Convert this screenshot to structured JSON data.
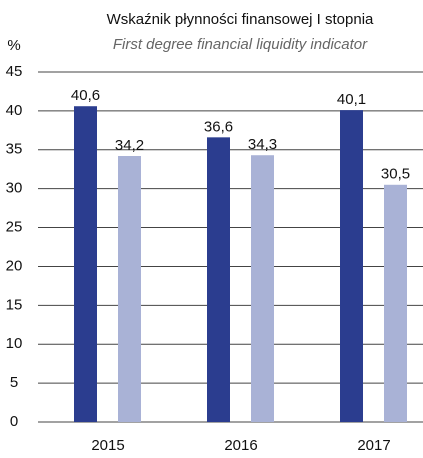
{
  "chart_data": {
    "type": "bar",
    "title": "Wskaźnik płynności finansowej I stopnia",
    "subtitle": "First degree financial liquidity indicator",
    "y_label": "%",
    "categories": [
      "2015",
      "2016",
      "2017"
    ],
    "series": [
      {
        "color": "#2b3d8f",
        "values": [
          40.6,
          36.6,
          40.1
        ],
        "value_labels": [
          "40,6",
          "36,6",
          "40,1"
        ]
      },
      {
        "color": "#a9b2d6",
        "values": [
          34.2,
          34.3,
          30.5
        ],
        "value_labels": [
          "34,2",
          "34,3",
          "30,5"
        ]
      }
    ],
    "ylim": [
      0,
      45
    ],
    "yticks": [
      0,
      5,
      10,
      15,
      20,
      25,
      30,
      35,
      40,
      45
    ],
    "grid": true
  }
}
